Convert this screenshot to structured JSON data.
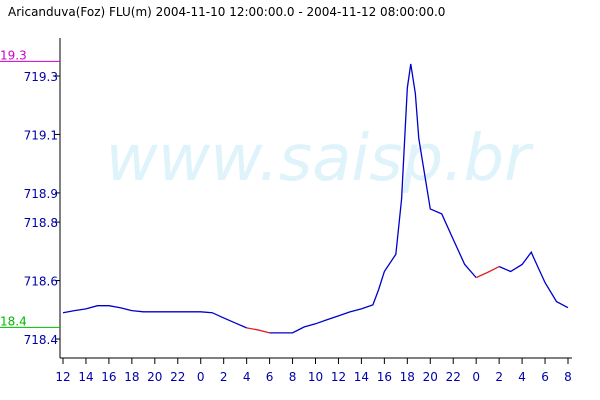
{
  "chart_data": {
    "type": "line",
    "title": "Aricanduva(Foz) FLU(m) 2004-11-10 12:00:00.0 - 2004-11-12 08:00:00.0",
    "watermark": "www.saisp.br",
    "x": [
      0,
      1,
      2,
      3,
      4,
      5,
      6,
      7,
      8,
      9,
      10,
      11,
      12,
      13,
      14,
      15,
      16,
      17,
      18,
      19,
      20,
      21,
      22,
      23,
      24,
      25,
      26,
      27,
      27.5,
      28,
      29,
      29.5,
      30,
      30.3,
      30.7,
      31,
      32,
      33,
      34,
      35,
      36,
      37,
      38,
      39,
      40,
      40.8,
      41,
      42,
      43,
      44
    ],
    "series": [
      {
        "color": "#0000cc",
        "values": [
          718.49,
          718.497,
          718.503,
          718.514,
          718.514,
          718.507,
          718.497,
          718.493,
          718.493,
          718.493,
          718.493,
          718.493,
          718.493,
          718.49,
          718.472,
          718.455,
          718.438,
          null,
          718.421,
          718.421,
          718.421,
          718.441,
          718.452,
          718.466,
          718.479,
          718.493,
          718.503,
          718.517,
          718.569,
          718.631,
          718.69,
          718.879,
          719.259,
          719.341,
          719.24,
          719.086,
          718.845,
          718.828,
          718.741,
          718.655,
          718.61,
          null,
          718.648,
          718.631,
          718.655,
          718.697,
          718.679,
          718.593,
          718.528,
          718.507
        ]
      },
      {
        "color": "#dd2222",
        "values": [
          null,
          null,
          null,
          null,
          null,
          null,
          null,
          null,
          null,
          null,
          null,
          null,
          null,
          null,
          null,
          null,
          718.438,
          718.431,
          718.421,
          null,
          null,
          null,
          null,
          null,
          null,
          null,
          null,
          null,
          null,
          null,
          null,
          null,
          null,
          null,
          null,
          null,
          null,
          null,
          null,
          null,
          718.61,
          718.628,
          718.648,
          null,
          null,
          null,
          null,
          null,
          null,
          null
        ]
      }
    ],
    "xlim": [
      0,
      44
    ],
    "xticks": [
      {
        "value": 0,
        "label": "12"
      },
      {
        "value": 2,
        "label": "14"
      },
      {
        "value": 4,
        "label": "16"
      },
      {
        "value": 6,
        "label": "18"
      },
      {
        "value": 8,
        "label": "20"
      },
      {
        "value": 10,
        "label": "22"
      },
      {
        "value": 12,
        "label": "0"
      },
      {
        "value": 14,
        "label": "2"
      },
      {
        "value": 16,
        "label": "4"
      },
      {
        "value": 18,
        "label": "6"
      },
      {
        "value": 20,
        "label": "8"
      },
      {
        "value": 22,
        "label": "10"
      },
      {
        "value": 24,
        "label": "12"
      },
      {
        "value": 26,
        "label": "14"
      },
      {
        "value": 28,
        "label": "16"
      },
      {
        "value": 30,
        "label": "18"
      },
      {
        "value": 32,
        "label": "20"
      },
      {
        "value": 34,
        "label": "22"
      },
      {
        "value": 36,
        "label": "0"
      },
      {
        "value": 38,
        "label": "2"
      },
      {
        "value": 40,
        "label": "4"
      },
      {
        "value": 42,
        "label": "6"
      },
      {
        "value": 44,
        "label": "8"
      }
    ],
    "ylim": [
      718.335,
      719.43
    ],
    "yticks": [
      719.3,
      719.1,
      718.9,
      718.8,
      718.6,
      718.4
    ],
    "max_line": {
      "value": 719.35,
      "label": "19.3",
      "color": "#cc00cc"
    },
    "min_line": {
      "value": 718.44,
      "label": "18.4",
      "color": "#00bb00"
    }
  }
}
